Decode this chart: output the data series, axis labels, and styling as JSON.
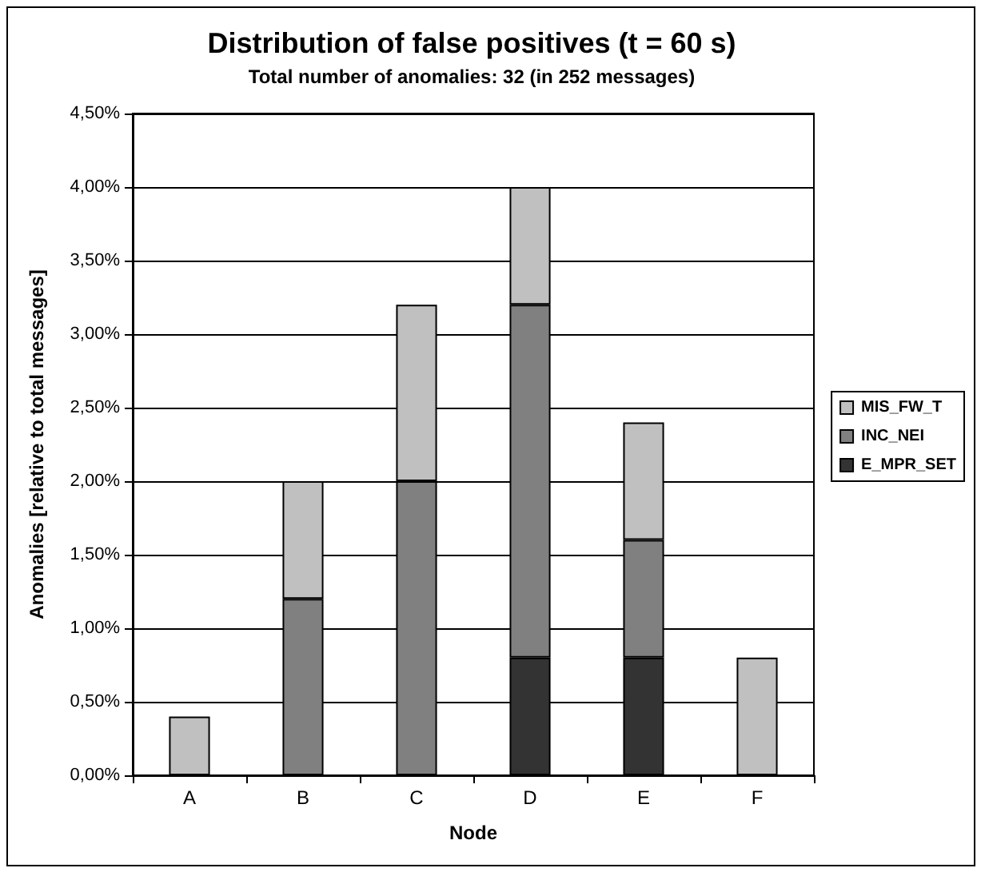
{
  "chart_data": {
    "type": "bar",
    "title": "Distribution of false positives (t = 60 s)",
    "subtitle": "Total number of anomalies: 32 (in 252 messages)",
    "xlabel": "Node",
    "ylabel": "Anomalies [relative to total messages]",
    "categories": [
      "A",
      "B",
      "C",
      "D",
      "E",
      "F"
    ],
    "stacked": true,
    "series": [
      {
        "name": "E_MPR_SET",
        "color": "#333333",
        "values": [
          null,
          null,
          null,
          0.8,
          0.8,
          null
        ]
      },
      {
        "name": "INC_NEI",
        "color": "#808080",
        "values": [
          null,
          1.2,
          2.0,
          2.4,
          0.8,
          null
        ]
      },
      {
        "name": "MIS_FW_T",
        "color": "#c0c0c0",
        "values": [
          0.4,
          0.8,
          1.2,
          0.8,
          0.8,
          0.8
        ]
      }
    ],
    "ylim": [
      0,
      4.5
    ],
    "yticks": [
      {
        "value": 0,
        "label": "0,00%"
      },
      {
        "value": 0.5,
        "label": "0,50%"
      },
      {
        "value": 1,
        "label": "1,00%"
      },
      {
        "value": 1.5,
        "label": "1,50%"
      },
      {
        "value": 2,
        "label": "2,00%"
      },
      {
        "value": 2.5,
        "label": "2,50%"
      },
      {
        "value": 3,
        "label": "3,00%"
      },
      {
        "value": 3.5,
        "label": "3,50%"
      },
      {
        "value": 4,
        "label": "4,00%"
      },
      {
        "value": 4.5,
        "label": "4,50%"
      }
    ],
    "grid": "y",
    "legend": "right"
  }
}
